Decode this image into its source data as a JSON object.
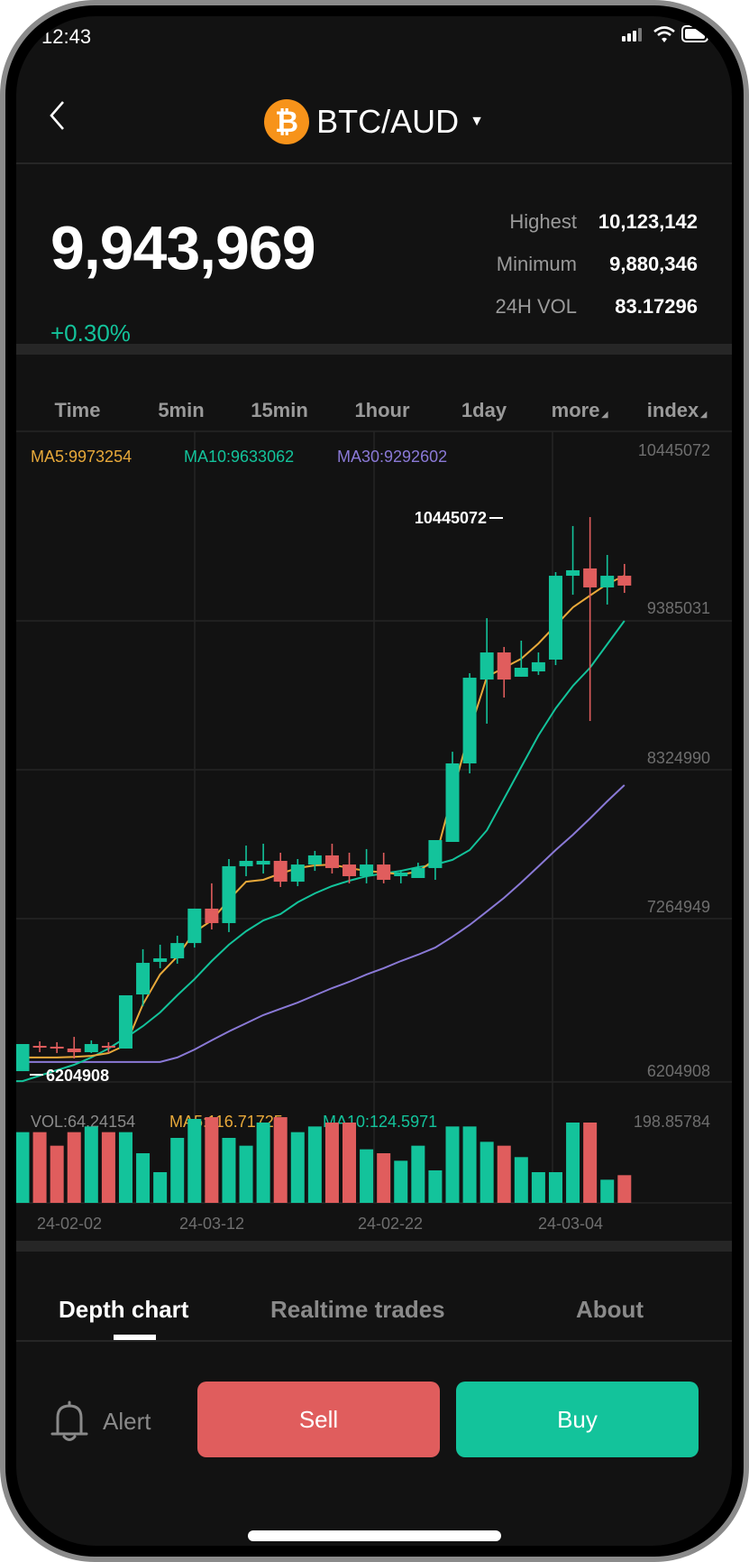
{
  "status_bar": {
    "time": "12:43"
  },
  "header": {
    "pair": "BTC/AUD",
    "coin_symbol": "₿",
    "back_icon": "chevron-left-icon"
  },
  "ticker": {
    "price": "9,943,969",
    "change": "+0.30%",
    "stats": [
      {
        "label": "Highest",
        "value": "10,123,142"
      },
      {
        "label": "Minimum",
        "value": "9,880,346"
      },
      {
        "label": "24H VOL",
        "value": "83.17296"
      }
    ]
  },
  "timeframes": [
    "Time",
    "5min",
    "15min",
    "1hour",
    "1day",
    "more",
    "index"
  ],
  "colors": {
    "up": "#13c39b",
    "down": "#e05d5d",
    "ma5": "#e8a93a",
    "ma10": "#13c39b",
    "ma30": "#8a79d6",
    "coin": "#f7931a"
  },
  "chart_data": {
    "type": "candlestick",
    "legend": {
      "ma5": "MA5:9973254",
      "ma10": "MA10:9633062",
      "ma30": "MA30:9292602"
    },
    "y_ticks": [
      "10445072",
      "9385031",
      "8324990",
      "7264949",
      "6204908"
    ],
    "max_marker": "10445072",
    "min_marker": "6204908",
    "x_ticks": [
      "24-02-02",
      "24-03-12",
      "24-02-22",
      "24-03-04"
    ],
    "candles": [
      [
        6179000,
        6372000,
        6372000,
        6179000
      ],
      [
        6359000,
        6353000,
        6391000,
        6314000
      ],
      [
        6353000,
        6346000,
        6385000,
        6308000
      ],
      [
        6340000,
        6314000,
        6423000,
        6269000
      ],
      [
        6314000,
        6372000,
        6398000,
        6308000
      ],
      [
        6359000,
        6353000,
        6385000,
        6308000
      ],
      [
        6340000,
        6719000,
        6719000,
        6340000
      ],
      [
        6725000,
        6950000,
        7047000,
        6642000
      ],
      [
        6957000,
        6982000,
        7079000,
        6912000
      ],
      [
        6982000,
        7091000,
        7143000,
        6944000
      ],
      [
        7091000,
        7336000,
        7336000,
        7059000
      ],
      [
        7336000,
        7233000,
        7516000,
        7188000
      ],
      [
        7233000,
        7638000,
        7689000,
        7169000
      ],
      [
        7638000,
        7676000,
        7785000,
        7567000
      ],
      [
        7650000,
        7676000,
        7798000,
        7586000
      ],
      [
        7676000,
        7528000,
        7734000,
        7490000
      ],
      [
        7528000,
        7650000,
        7689000,
        7496000
      ],
      [
        7650000,
        7715000,
        7747000,
        7605000
      ],
      [
        7715000,
        7625000,
        7798000,
        7586000
      ],
      [
        7650000,
        7567000,
        7734000,
        7516000
      ],
      [
        7567000,
        7650000,
        7760000,
        7516000
      ],
      [
        7650000,
        7541000,
        7734000,
        7516000
      ],
      [
        7567000,
        7593000,
        7612000,
        7516000
      ],
      [
        7554000,
        7625000,
        7663000,
        7554000
      ],
      [
        7625000,
        7824000,
        7824000,
        7541000
      ],
      [
        7811000,
        8370000,
        8453000,
        7811000
      ],
      [
        8370000,
        8980000,
        9012000,
        8299000
      ],
      [
        8967000,
        9160000,
        9404000,
        8653000
      ],
      [
        9160000,
        8967000,
        9199000,
        8839000
      ],
      [
        8987000,
        9051000,
        9244000,
        8987000
      ],
      [
        9025000,
        9090000,
        9160000,
        9000000
      ],
      [
        9109000,
        9706000,
        9732000,
        9070000
      ],
      [
        9706000,
        9745000,
        10060000,
        9571000
      ],
      [
        9758000,
        9623000,
        10124000,
        8672000
      ],
      [
        9623000,
        9706000,
        9854000,
        9501000
      ],
      [
        9706000,
        9636000,
        9790000,
        9584000
      ]
    ],
    "ma5": [
      6276000,
      6276000,
      6276000,
      6280000,
      6288000,
      6308000,
      6365000,
      6655000,
      6867000,
      6995000,
      7169000,
      7252000,
      7400000,
      7528000,
      7541000,
      7586000,
      7625000,
      7644000,
      7650000,
      7625000,
      7605000,
      7593000,
      7580000,
      7599000,
      7689000,
      8152000,
      8601000,
      8987000,
      9051000,
      9115000,
      9224000,
      9353000,
      9481000,
      9565000,
      9648000,
      9706000
    ],
    "ma10": [
      6108000,
      6147000,
      6186000,
      6224000,
      6276000,
      6340000,
      6417000,
      6500000,
      6597000,
      6719000,
      6834000,
      6963000,
      7079000,
      7175000,
      7252000,
      7297000,
      7381000,
      7445000,
      7496000,
      7535000,
      7567000,
      7586000,
      7605000,
      7631000,
      7650000,
      7683000,
      7753000,
      7894000,
      8119000,
      8344000,
      8569000,
      8762000,
      8922000,
      9051000,
      9218000,
      9385000
    ],
    "ma30": [
      6244000,
      6244000,
      6244000,
      6244000,
      6244000,
      6244000,
      6244000,
      6244000,
      6244000,
      6276000,
      6333000,
      6398000,
      6462000,
      6520000,
      6578000,
      6623000,
      6667000,
      6719000,
      6770000,
      6815000,
      6867000,
      6912000,
      6963000,
      7008000,
      7059000,
      7136000,
      7220000,
      7316000,
      7413000,
      7522000,
      7637000,
      7753000,
      7862000,
      7978000,
      8100000,
      8216000
    ],
    "volume": {
      "legend": {
        "vol": "VOL:64.24154",
        "ma5": "MA5:116.71725",
        "ma10": "MA10:124.5971"
      },
      "max_label": "198.85784",
      "max": 198.85784,
      "values": [
        164.0,
        164.0,
        132.6,
        164.0,
        177.2,
        164.0,
        164.0,
        115.1,
        71.2,
        150.7,
        194.7,
        198.8,
        150.7,
        132.6,
        186.3,
        198.8,
        164.0,
        177.2,
        186.3,
        186.3,
        124.2,
        115.1,
        97.7,
        132.6,
        75.4,
        177.2,
        177.2,
        141.6,
        132.6,
        106.1,
        71.2,
        71.2,
        186.3,
        186.3,
        53.7,
        64.2
      ]
    },
    "y_range": [
      6204908,
      10445072
    ]
  },
  "tabs": [
    "Depth chart",
    "Realtime trades",
    "About"
  ],
  "actions": {
    "alert": "Alert",
    "sell": "Sell",
    "buy": "Buy"
  }
}
